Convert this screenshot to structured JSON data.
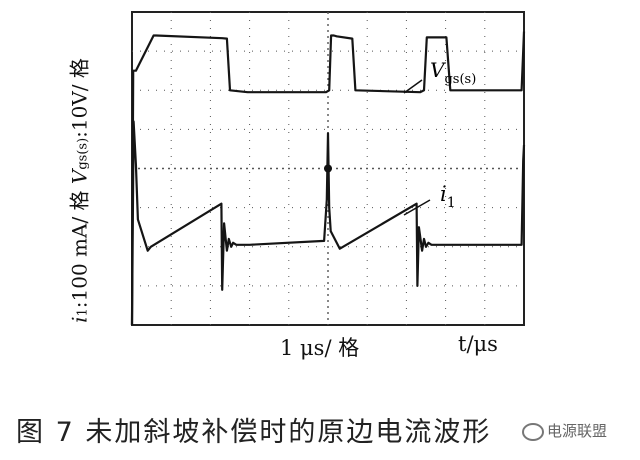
{
  "chart_data": {
    "type": "line",
    "title": "",
    "xlabel": "t/μs",
    "x_division": "1 μs/ 格",
    "ylabel_parts": {
      "current_scale": "i",
      "current_sub": "1",
      "current_rest": ":100 mA/ 格 ",
      "voltage_symbol": "V",
      "voltage_sub": "gs(s)",
      "voltage_rest": ":10V/ 格"
    },
    "grid": true,
    "divisions": {
      "x": 10,
      "y": 8
    },
    "series": [
      {
        "name": "Vgs(s)",
        "label_main": "V",
        "label_sub": "gs(s)",
        "x_div": [
          0,
          0.03,
          0.1,
          0.55,
          0.62,
          2.3,
          2.42,
          2.5,
          2.95,
          3.05,
          4.95,
          5.03,
          5.08,
          5.15,
          5.22,
          5.62,
          5.7,
          7.35,
          7.45,
          7.52,
          8.02,
          8.12,
          9.94,
          10
        ],
        "y_div": [
          0,
          6.5,
          6.5,
          7.4,
          7.4,
          7.33,
          7.32,
          6.0,
          5.95,
          5.95,
          5.95,
          6.0,
          7.4,
          7.4,
          7.38,
          7.32,
          6.0,
          5.95,
          6.0,
          7.35,
          7.35,
          6.0,
          6.0,
          7.5
        ]
      },
      {
        "name": "i1",
        "label_main": "i",
        "label_sub": "1",
        "x_div": [
          0,
          0.02,
          0.04,
          0.1,
          0.15,
          0.4,
          0.48,
          2.28,
          2.3,
          2.35,
          2.42,
          2.47,
          2.53,
          2.58,
          2.66,
          2.8,
          3.0,
          4.9,
          4.97,
          5.0,
          5.03,
          5.07,
          5.3,
          7.26,
          7.28,
          7.32,
          7.4,
          7.45,
          7.5,
          7.56,
          7.64,
          7.8,
          8.0,
          9.94,
          9.98,
          10
        ],
        "y_div": [
          0,
          2.6,
          5.2,
          4.1,
          2.7,
          1.9,
          2.0,
          3.1,
          0.9,
          2.6,
          1.9,
          2.2,
          2.0,
          2.1,
          2.05,
          2.05,
          2.05,
          2.15,
          3.2,
          4.9,
          3.0,
          2.4,
          1.95,
          3.1,
          1.0,
          2.5,
          1.9,
          2.2,
          2.0,
          2.1,
          2.05,
          2.05,
          2.05,
          2.05,
          4.2,
          4.6
        ]
      }
    ],
    "marker": {
      "x_div": 5,
      "y_div": 4
    }
  },
  "caption": "图 7   未加斜坡补偿时的原边电流波形",
  "watermark": "电源联盟",
  "colors": {
    "trace": "#151515",
    "grid": "#555555",
    "background": "#ffffff"
  }
}
